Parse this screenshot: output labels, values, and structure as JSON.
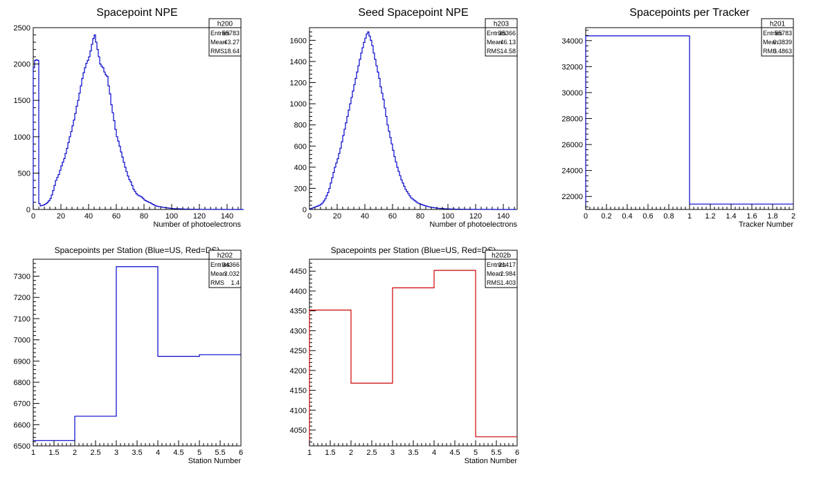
{
  "chart_data": [
    {
      "type": "histogram",
      "title": "Spacepoint NPE",
      "xlabel": "Number of photoelectrons",
      "ylabel": "",
      "xlim": [
        0,
        150
      ],
      "ylim": [
        0,
        2500
      ],
      "xticks": [
        0,
        20,
        40,
        60,
        80,
        100,
        120,
        140
      ],
      "yticks": [
        0,
        500,
        1000,
        1500,
        2000,
        2500
      ],
      "line_color": "#0000cc",
      "stats": {
        "name": "h200",
        "rows": [
          {
            "label": "Entries",
            "value": "55783"
          },
          {
            "label": "Mean",
            "value": "43.27"
          },
          {
            "label": "RMS",
            "value": "18.64"
          }
        ]
      },
      "bin_edges_start": 0,
      "bin_width": 1,
      "values": [
        1950,
        2050,
        2060,
        2050,
        80,
        50,
        55,
        60,
        70,
        80,
        100,
        120,
        150,
        200,
        260,
        330,
        400,
        440,
        480,
        540,
        600,
        650,
        700,
        770,
        840,
        920,
        1000,
        1070,
        1150,
        1230,
        1320,
        1420,
        1500,
        1600,
        1700,
        1800,
        1880,
        1950,
        2010,
        2050,
        2100,
        2180,
        2270,
        2350,
        2400,
        2300,
        2200,
        2100,
        2000,
        1970,
        1950,
        1890,
        1850,
        1830,
        1700,
        1590,
        1440,
        1330,
        1220,
        1100,
        1000,
        940,
        870,
        790,
        720,
        650,
        580,
        520,
        460,
        410,
        380,
        330,
        280,
        250,
        220,
        200,
        190,
        180,
        170,
        150,
        130,
        120,
        110,
        100,
        95,
        80,
        70,
        60,
        50,
        45,
        40,
        38,
        35,
        30,
        28,
        25,
        22,
        20,
        18,
        15,
        12,
        12,
        10,
        10,
        10,
        8,
        8,
        6,
        6,
        5,
        5,
        5,
        5,
        4,
        4,
        3,
        3,
        3,
        3,
        3,
        2,
        2,
        2,
        2,
        2,
        1,
        1,
        1,
        1,
        1,
        1,
        1,
        1,
        1,
        1,
        1,
        1,
        0,
        0,
        0,
        0,
        0,
        0,
        0,
        0,
        0,
        0,
        0,
        0,
        0,
        0,
        0
      ]
    },
    {
      "type": "histogram",
      "title": "Seed Spacepoint NPE",
      "xlabel": "Number of photoelectrons",
      "ylabel": "",
      "xlim": [
        0,
        150
      ],
      "ylim": [
        0,
        1720
      ],
      "xticks": [
        0,
        20,
        40,
        60,
        80,
        100,
        120,
        140
      ],
      "yticks": [
        0,
        200,
        400,
        600,
        800,
        1000,
        1200,
        1400,
        1600
      ],
      "line_color": "#0000cc",
      "stats": {
        "name": "h203",
        "rows": [
          {
            "label": "Entries",
            "value": "35366"
          },
          {
            "label": "Mean",
            "value": "46.13"
          },
          {
            "label": "RMS",
            "value": "14.58"
          }
        ]
      },
      "bin_edges_start": 0,
      "bin_width": 1,
      "values": [
        5,
        10,
        15,
        20,
        25,
        30,
        35,
        40,
        50,
        60,
        80,
        100,
        130,
        160,
        200,
        250,
        300,
        350,
        400,
        440,
        480,
        530,
        580,
        640,
        700,
        760,
        820,
        880,
        940,
        1000,
        1060,
        1120,
        1180,
        1240,
        1300,
        1360,
        1420,
        1480,
        1530,
        1580,
        1620,
        1660,
        1680,
        1640,
        1600,
        1550,
        1480,
        1420,
        1360,
        1300,
        1240,
        1160,
        1100,
        1040,
        960,
        880,
        800,
        740,
        680,
        620,
        560,
        500,
        450,
        400,
        360,
        320,
        280,
        250,
        220,
        190,
        170,
        150,
        130,
        110,
        100,
        90,
        80,
        70,
        60,
        55,
        50,
        45,
        40,
        36,
        32,
        28,
        25,
        22,
        20,
        18,
        16,
        14,
        12,
        11,
        10,
        9,
        8,
        7,
        6,
        6,
        5,
        5,
        4,
        4,
        4,
        3,
        3,
        3,
        3,
        3,
        2,
        2,
        2,
        2,
        2,
        2,
        2,
        1,
        1,
        1,
        1,
        1,
        1,
        1,
        1,
        1,
        1,
        1,
        1,
        1,
        1,
        1,
        0,
        0,
        0,
        0,
        0,
        0,
        0,
        0,
        0,
        0,
        0,
        0,
        0,
        0,
        0,
        0,
        0
      ]
    },
    {
      "type": "histogram",
      "title": "Spacepoints per Tracker",
      "xlabel": "Tracker Number",
      "ylabel": "",
      "xlim": [
        0,
        2
      ],
      "ylim": [
        21000,
        35000
      ],
      "xticks": [
        0,
        0.2,
        0.4,
        0.6,
        0.8,
        1,
        1.2,
        1.4,
        1.6,
        1.8,
        2
      ],
      "yticks": [
        22000,
        24000,
        26000,
        28000,
        30000,
        32000,
        34000
      ],
      "line_color": "#0000cc",
      "stats": {
        "name": "h201",
        "rows": [
          {
            "label": "Entries",
            "value": "55783"
          },
          {
            "label": "Mean",
            "value": "0.3839"
          },
          {
            "label": "RMS",
            "value": "0.4863"
          }
        ]
      },
      "bin_edges_start": 0,
      "bin_width": 1,
      "values": [
        34366,
        21417
      ]
    },
    {
      "type": "histogram",
      "title": "Spacepoints per Station (Blue=US, Red=DS)",
      "xlabel": "Station Number",
      "ylabel": "",
      "xlim": [
        1,
        6
      ],
      "ylim": [
        6500,
        7380
      ],
      "xticks": [
        1,
        1.5,
        2,
        2.5,
        3,
        3.5,
        4,
        4.5,
        5,
        5.5,
        6
      ],
      "yticks": [
        6500,
        6600,
        6700,
        6800,
        6900,
        7000,
        7100,
        7200,
        7300
      ],
      "line_color": "#0000cc",
      "stats": {
        "name": "h202",
        "rows": [
          {
            "label": "Entries",
            "value": "34366"
          },
          {
            "label": "Mean",
            "value": "3.032"
          },
          {
            "label": "RMS",
            "value": "1.4"
          }
        ]
      },
      "bin_edges_start": 1,
      "bin_width": 1,
      "values": [
        6525,
        6640,
        7345,
        6922,
        6930
      ]
    },
    {
      "type": "histogram",
      "title": "Spacepoints per Station (Blue=US, Red=DS)",
      "xlabel": "Station Number",
      "ylabel": "",
      "xlim": [
        1,
        6
      ],
      "ylim": [
        4010,
        4480
      ],
      "xticks": [
        1,
        1.5,
        2,
        2.5,
        3,
        3.5,
        4,
        4.5,
        5,
        5.5,
        6
      ],
      "yticks": [
        4050,
        4100,
        4150,
        4200,
        4250,
        4300,
        4350,
        4400,
        4450
      ],
      "line_color": "#cc0000",
      "stats": {
        "name": "h202b",
        "rows": [
          {
            "label": "Entries",
            "value": "21417"
          },
          {
            "label": "Mean",
            "value": "2.984"
          },
          {
            "label": "RMS",
            "value": "1.403"
          }
        ]
      },
      "bin_edges_start": 1,
      "bin_width": 1,
      "values": [
        4352,
        4168,
        4408,
        4452,
        4033
      ]
    }
  ]
}
